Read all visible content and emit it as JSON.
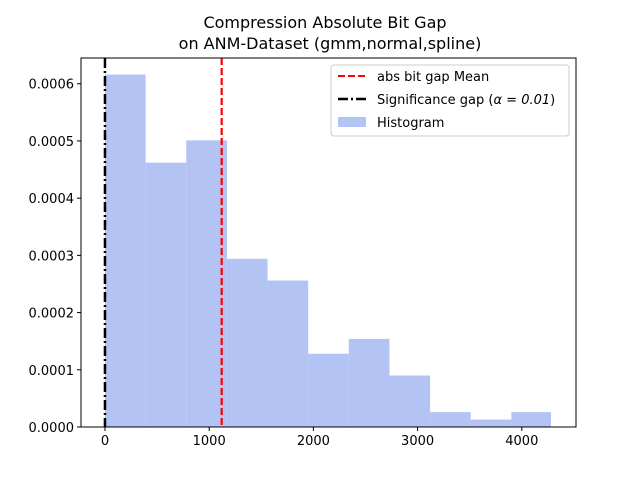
{
  "chart_data": {
    "type": "bar",
    "title_line1": "Compression Absolute Bit Gap",
    "title_line2": "on ANM-Dataset (gmm,normal,spline)",
    "xlabel": "",
    "ylabel": "",
    "xlim": [
      -230,
      4520
    ],
    "ylim": [
      0,
      0.000645
    ],
    "xticks": [
      0,
      1000,
      2000,
      3000,
      4000
    ],
    "xtick_labels": [
      "0",
      "1000",
      "2000",
      "3000",
      "4000"
    ],
    "yticks": [
      0,
      0.0001,
      0.0002,
      0.0003,
      0.0004,
      0.0005,
      0.0006
    ],
    "ytick_labels": [
      "0.0000",
      "0.0001",
      "0.0002",
      "0.0003",
      "0.0004",
      "0.0005",
      "0.0006"
    ],
    "bin_edges": [
      0,
      390,
      780,
      1170,
      1560,
      1950,
      2340,
      2730,
      3120,
      3510,
      3900,
      4280
    ],
    "densities": [
      0.000616,
      0.000462,
      0.000501,
      0.000294,
      0.000256,
      0.000128,
      0.000154,
      9e-05,
      2.6e-05,
      1.3e-05,
      2.6e-05
    ],
    "mean_line_x": 1120,
    "significance_line_x": 0,
    "legend": {
      "position": "top-right",
      "entries": [
        {
          "label": "abs bit gap Mean",
          "style": "dashed",
          "color": "#ff0000"
        },
        {
          "label": "Significance gap (",
          "math": "α = 0.01",
          "suffix": ")",
          "style": "dashdot",
          "color": "#000000"
        },
        {
          "label": "Histogram",
          "style": "patch",
          "color": "#b3c3f3"
        }
      ]
    },
    "colors": {
      "histogram": "#b3c3f3",
      "mean_line": "#ff0000",
      "significance_line": "#000000"
    },
    "grid": false
  }
}
